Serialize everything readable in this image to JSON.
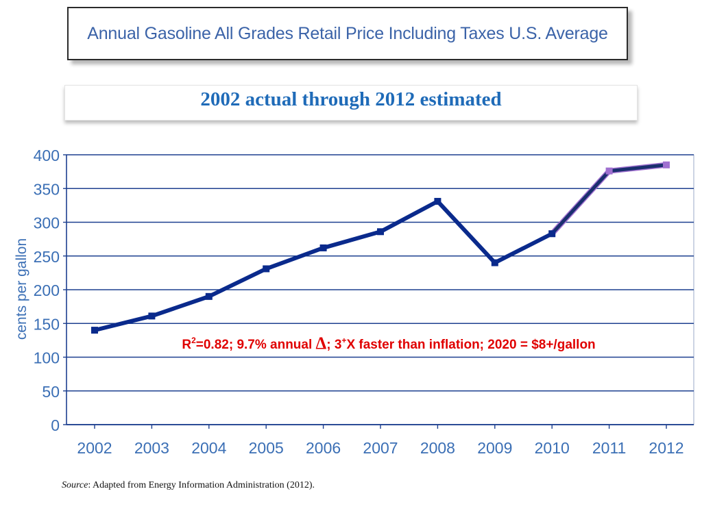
{
  "header": {
    "title": "Annual Gasoline All Grades Retail Price Including Taxes U.S. Average",
    "subtitle": "2002 actual through 2012 estimated"
  },
  "annotation": {
    "r2_prefix": "R",
    "r2_sup": "2",
    "part1": "=0.82; 9.7% annual ",
    "delta": "Δ",
    "part2": "; 3",
    "plus_sup": "+",
    "part3": "X faster than inflation; 2020 = $8+/gallon",
    "color": "#e00000"
  },
  "source": {
    "label": "Source",
    "text": ": Adapted from Energy Information Administration (2012)."
  },
  "chart_data": {
    "type": "line",
    "ylabel": "cents per gallon",
    "ylim": [
      0,
      400
    ],
    "yticks": [
      0,
      50,
      100,
      150,
      200,
      250,
      300,
      350,
      400
    ],
    "categories": [
      "2002",
      "2003",
      "2004",
      "2005",
      "2006",
      "2007",
      "2008",
      "2009",
      "2010",
      "2011",
      "2012"
    ],
    "series": [
      {
        "values": [
          140,
          161,
          190,
          231,
          262,
          286,
          331,
          240,
          283,
          376,
          385
        ],
        "color": "#0a2a8c"
      }
    ],
    "highlight_color": "#a070d0",
    "grid": true
  }
}
